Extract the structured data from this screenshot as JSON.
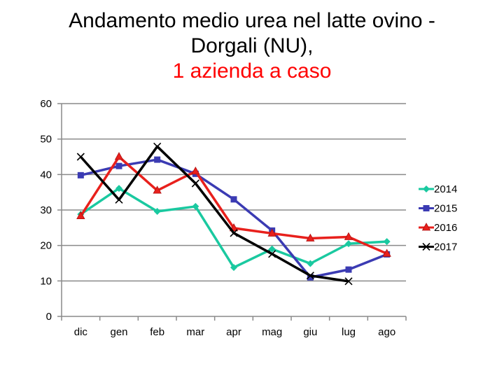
{
  "title": {
    "line1": "Andamento medio urea nel latte ovino -",
    "line2": "Dorgali (NU),",
    "line3": "1 azienda a caso"
  },
  "chart_data": {
    "type": "line",
    "categories": [
      "dic",
      "gen",
      "feb",
      "mar",
      "apr",
      "mag",
      "giu",
      "lug",
      "ago"
    ],
    "ylim": [
      0,
      60
    ],
    "yticks": [
      0,
      10,
      20,
      30,
      40,
      50,
      60
    ],
    "grid": true,
    "legend": "right",
    "series": [
      {
        "name": "2014",
        "color": "#1ac9a0",
        "marker": "diamond",
        "values": [
          28.8,
          36.1,
          29.6,
          31.0,
          13.8,
          19.0,
          14.9,
          20.5,
          21.1
        ]
      },
      {
        "name": "2015",
        "color": "#3b3bb3",
        "marker": "square",
        "values": [
          39.8,
          42.4,
          44.2,
          40.2,
          33.0,
          24.2,
          11.0,
          13.2,
          17.5
        ]
      },
      {
        "name": "2016",
        "color": "#e8201c",
        "marker": "triangle",
        "values": [
          28.3,
          45.0,
          35.5,
          40.9,
          24.9,
          23.4,
          22.0,
          22.4,
          17.7
        ]
      },
      {
        "name": "2017",
        "color": "#000000",
        "marker": "x",
        "values": [
          45.0,
          32.9,
          47.9,
          37.5,
          23.5,
          17.6,
          11.5,
          9.9,
          null
        ]
      }
    ]
  }
}
